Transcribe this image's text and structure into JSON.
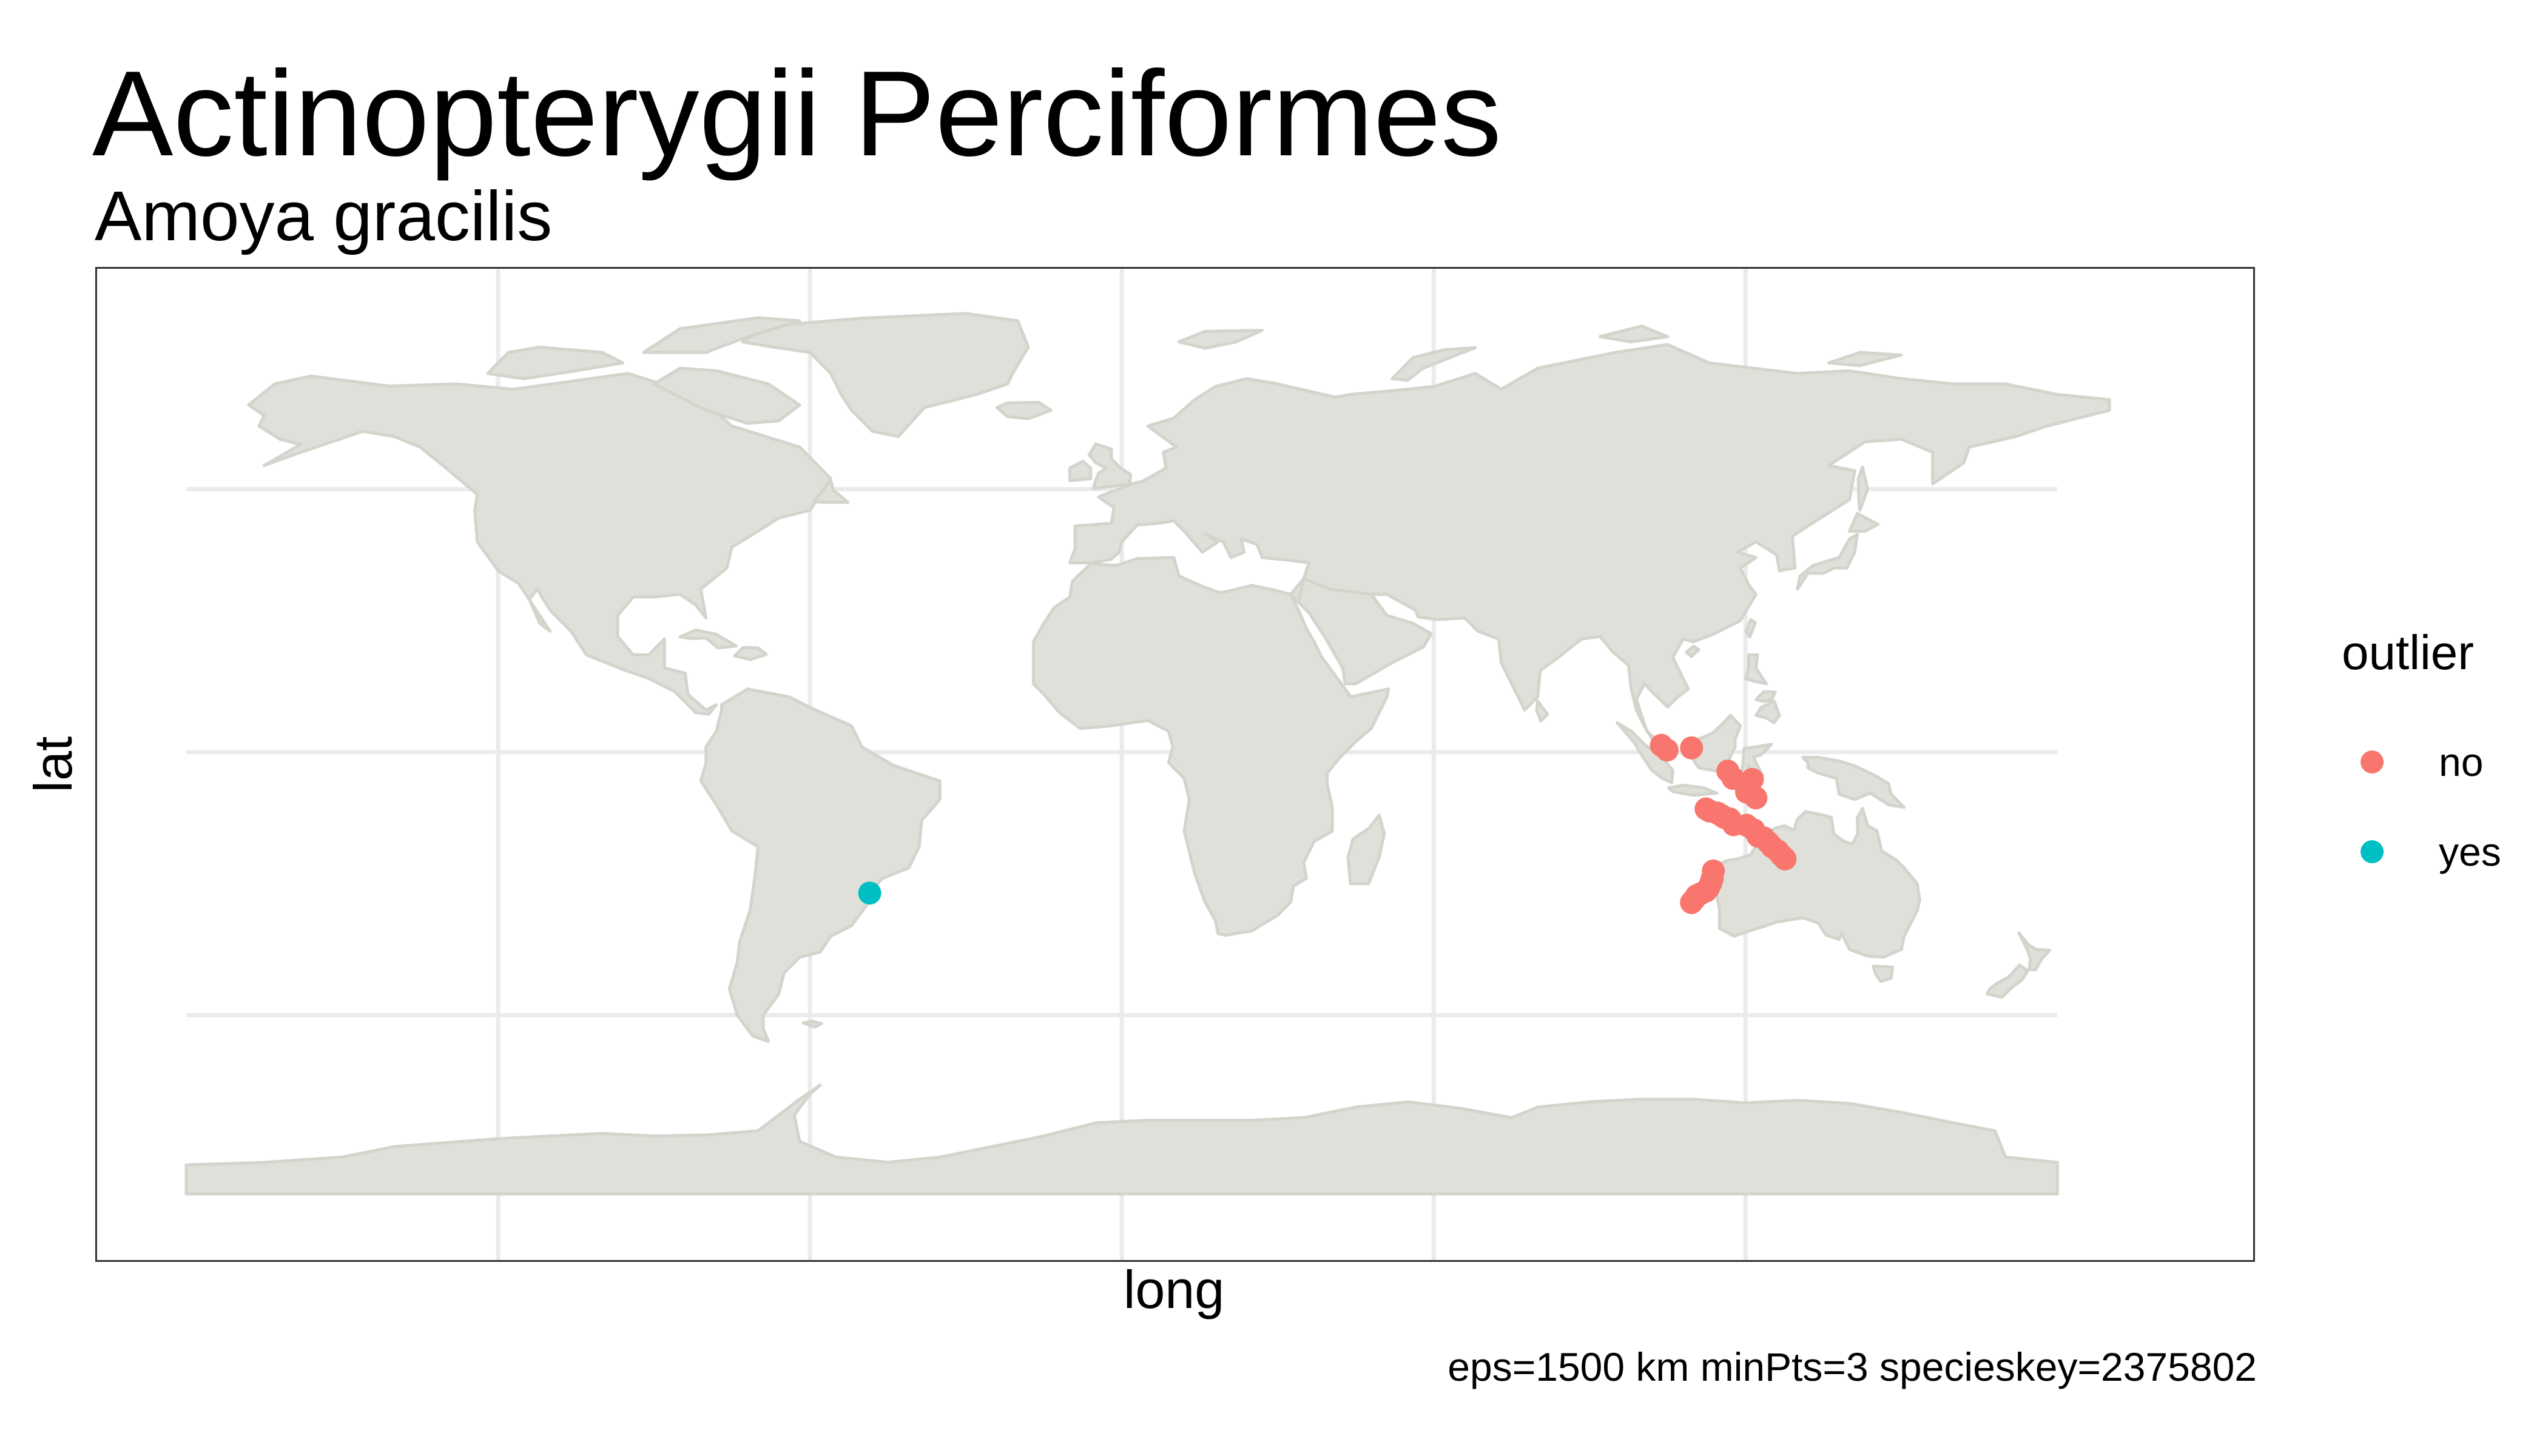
{
  "title": "Actinopterygii Perciformes",
  "subtitle": "Amoya gracilis",
  "caption": "eps=1500 km minPts=3 specieskey=2375802",
  "map": {
    "xlabel": "long",
    "ylabel": "lat",
    "land_color": "#dfe0d9",
    "border_color": "#d3d4cc",
    "grid_color": "#ebebeb",
    "grid": true
  },
  "legend": {
    "title": "outlier",
    "items": [
      {
        "label": "no",
        "color": "#F8766D"
      },
      {
        "label": "yes",
        "color": "#00BFC4"
      }
    ]
  },
  "points": [
    {
      "lon": -48.5,
      "lat": -26.8,
      "outlier": "yes"
    },
    {
      "lon": 103.8,
      "lat": 1.3,
      "outlier": "no"
    },
    {
      "lon": 104.9,
      "lat": 0.4,
      "outlier": "no"
    },
    {
      "lon": 109.6,
      "lat": 0.8,
      "outlier": "no"
    },
    {
      "lon": 116.6,
      "lat": -3.6,
      "outlier": "no"
    },
    {
      "lon": 117.6,
      "lat": -5.0,
      "outlier": "no"
    },
    {
      "lon": 121.3,
      "lat": -5.2,
      "outlier": "no"
    },
    {
      "lon": 120.2,
      "lat": -7.6,
      "outlier": "no"
    },
    {
      "lon": 122.0,
      "lat": -8.7,
      "outlier": "no"
    },
    {
      "lon": 112.4,
      "lat": -10.8,
      "outlier": "no"
    },
    {
      "lon": 113.1,
      "lat": -11.2,
      "outlier": "no"
    },
    {
      "lon": 114.6,
      "lat": -11.6,
      "outlier": "no"
    },
    {
      "lon": 115.3,
      "lat": -12.0,
      "outlier": "no"
    },
    {
      "lon": 115.9,
      "lat": -12.4,
      "outlier": "no"
    },
    {
      "lon": 117.0,
      "lat": -12.7,
      "outlier": "no"
    },
    {
      "lon": 117.7,
      "lat": -13.8,
      "outlier": "no"
    },
    {
      "lon": 120.2,
      "lat": -13.9,
      "outlier": "no"
    },
    {
      "lon": 121.6,
      "lat": -14.8,
      "outlier": "no"
    },
    {
      "lon": 122.4,
      "lat": -16.0,
      "outlier": "no"
    },
    {
      "lon": 123.5,
      "lat": -16.3,
      "outlier": "no"
    },
    {
      "lon": 124.4,
      "lat": -17.2,
      "outlier": "no"
    },
    {
      "lon": 125.1,
      "lat": -18.0,
      "outlier": "no"
    },
    {
      "lon": 126.2,
      "lat": -18.8,
      "outlier": "no"
    },
    {
      "lon": 126.9,
      "lat": -19.6,
      "outlier": "no"
    },
    {
      "lon": 127.6,
      "lat": -20.3,
      "outlier": "no"
    },
    {
      "lon": 113.8,
      "lat": -22.6,
      "outlier": "no"
    },
    {
      "lon": 113.6,
      "lat": -24.0,
      "outlier": "no"
    },
    {
      "lon": 113.3,
      "lat": -24.9,
      "outlier": "no"
    },
    {
      "lon": 112.9,
      "lat": -25.8,
      "outlier": "no"
    },
    {
      "lon": 112.4,
      "lat": -26.4,
      "outlier": "no"
    },
    {
      "lon": 111.4,
      "lat": -26.9,
      "outlier": "no"
    },
    {
      "lon": 110.6,
      "lat": -27.3,
      "outlier": "no"
    },
    {
      "lon": 110.1,
      "lat": -28.0,
      "outlier": "no"
    },
    {
      "lon": 109.6,
      "lat": -28.6,
      "outlier": "no"
    }
  ]
}
